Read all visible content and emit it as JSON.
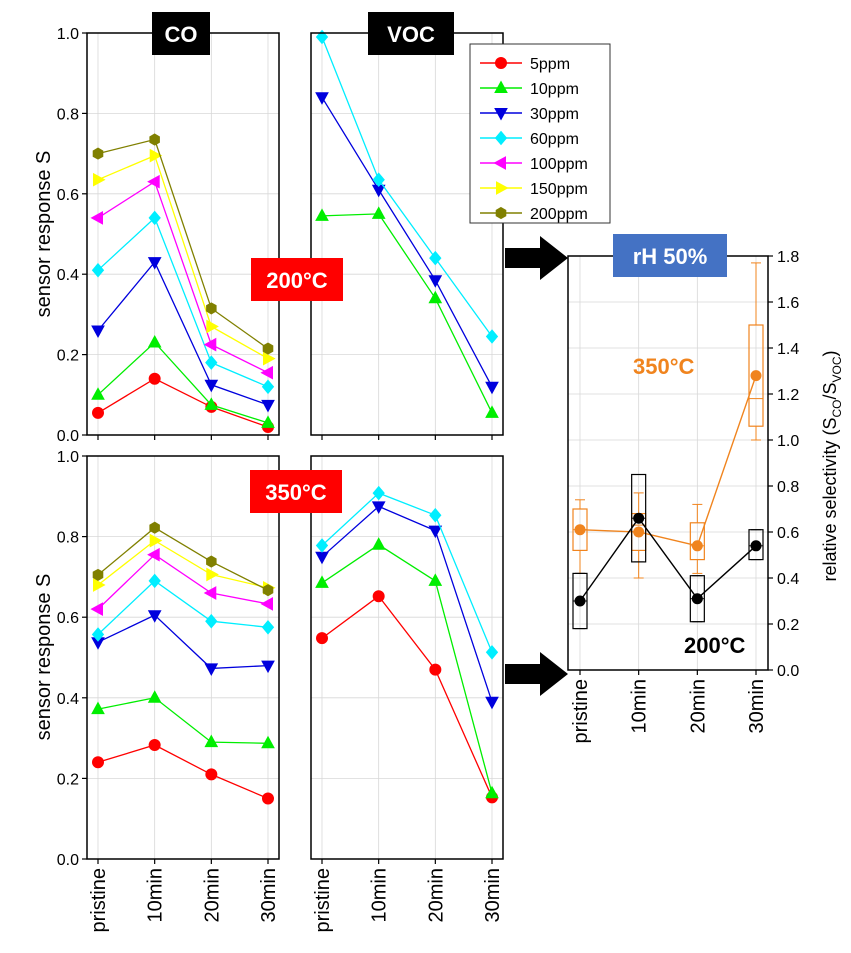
{
  "legend": [
    {
      "key": "s5",
      "label": "5ppm",
      "color": "#ff0000",
      "marker": "circle"
    },
    {
      "key": "s10",
      "label": "10ppm",
      "color": "#00ee00",
      "marker": "triangle-up"
    },
    {
      "key": "s30",
      "label": "30ppm",
      "color": "#0000dd",
      "marker": "triangle-down"
    },
    {
      "key": "s60",
      "label": "60ppm",
      "color": "#00eeff",
      "marker": "diamond"
    },
    {
      "key": "s100",
      "label": "100ppm",
      "color": "#ff00ff",
      "marker": "triangle-left"
    },
    {
      "key": "s150",
      "label": "150ppm",
      "color": "#ffff00",
      "marker": "triangle-right"
    },
    {
      "key": "s200",
      "label": "200ppm",
      "color": "#808000",
      "marker": "hexagon"
    }
  ],
  "labels": {
    "co": "CO",
    "voc": "VOC",
    "temp200": "200°C",
    "temp350": "350°C",
    "rh": "rH 50%",
    "ylabel_left": "sensor response S",
    "ylabel_right": "relative selectivity (S",
    "ylabel_right_sub1": "CO",
    "ylabel_right_mid": "/S",
    "ylabel_right_sub2": "VOC",
    "ylabel_right_end": ")",
    "annot_350": "350°C",
    "annot_200": "200°C"
  },
  "colors": {
    "orange": "#f0841e",
    "black": "#000000",
    "rh_box": "#4472c4",
    "temp_box": "#ff0000"
  },
  "chart_data": [
    {
      "id": "co_200",
      "type": "line",
      "title": "CO",
      "annotation": "200°C",
      "categories": [
        "pristine",
        "10min",
        "20min",
        "30min"
      ],
      "ylim": [
        0,
        1.0
      ],
      "yticks": [
        "0.0",
        "0.2",
        "0.4",
        "0.6",
        "0.8",
        "1.0"
      ],
      "ylabel": "sensor response S",
      "series": [
        {
          "name": "5ppm",
          "values": [
            0.055,
            0.14,
            0.07,
            0.02
          ]
        },
        {
          "name": "10ppm",
          "values": [
            0.1,
            0.23,
            0.075,
            0.03
          ]
        },
        {
          "name": "30ppm",
          "values": [
            0.26,
            0.43,
            0.125,
            0.075
          ]
        },
        {
          "name": "60ppm",
          "values": [
            0.41,
            0.54,
            0.18,
            0.12
          ]
        },
        {
          "name": "100ppm",
          "values": [
            0.54,
            0.63,
            0.225,
            0.155
          ]
        },
        {
          "name": "150ppm",
          "values": [
            0.635,
            0.695,
            0.27,
            0.19
          ]
        },
        {
          "name": "200ppm",
          "values": [
            0.7,
            0.735,
            0.315,
            0.215
          ]
        }
      ]
    },
    {
      "id": "voc_200",
      "type": "line",
      "title": "VOC",
      "annotation": "200°C",
      "categories": [
        "pristine",
        "10min",
        "20min",
        "30min"
      ],
      "ylim": [
        0,
        1.0
      ],
      "series": [
        {
          "name": "10ppm",
          "values": [
            0.545,
            0.55,
            0.34,
            0.055
          ]
        },
        {
          "name": "30ppm",
          "values": [
            0.84,
            0.61,
            0.385,
            0.12
          ]
        },
        {
          "name": "60ppm",
          "values": [
            0.99,
            0.635,
            0.44,
            0.245
          ]
        }
      ]
    },
    {
      "id": "co_350",
      "type": "line",
      "title": "CO",
      "annotation": "350°C",
      "categories": [
        "pristine",
        "10min",
        "20min",
        "30min"
      ],
      "ylim": [
        0,
        1.0
      ],
      "yticks": [
        "0.0",
        "0.2",
        "0.4",
        "0.6",
        "0.8",
        "1.0"
      ],
      "ylabel": "sensor response S",
      "series": [
        {
          "name": "5ppm",
          "values": [
            0.24,
            0.283,
            0.21,
            0.15
          ]
        },
        {
          "name": "10ppm",
          "values": [
            0.372,
            0.4,
            0.29,
            0.287
          ]
        },
        {
          "name": "30ppm",
          "values": [
            0.538,
            0.605,
            0.473,
            0.48
          ]
        },
        {
          "name": "60ppm",
          "values": [
            0.557,
            0.69,
            0.59,
            0.575
          ]
        },
        {
          "name": "100ppm",
          "values": [
            0.62,
            0.755,
            0.66,
            0.633
          ]
        },
        {
          "name": "150ppm",
          "values": [
            0.68,
            0.79,
            0.706,
            0.673
          ]
        },
        {
          "name": "200ppm",
          "values": [
            0.705,
            0.822,
            0.738,
            0.667
          ]
        }
      ]
    },
    {
      "id": "voc_350",
      "type": "line",
      "title": "VOC",
      "annotation": "350°C",
      "categories": [
        "pristine",
        "10min",
        "20min",
        "30min"
      ],
      "ylim": [
        0,
        1.0
      ],
      "series": [
        {
          "name": "5ppm",
          "values": [
            0.548,
            0.652,
            0.47,
            0.153
          ]
        },
        {
          "name": "10ppm",
          "values": [
            0.685,
            0.78,
            0.69,
            0.163
          ]
        },
        {
          "name": "30ppm",
          "values": [
            0.75,
            0.875,
            0.815,
            0.39
          ]
        },
        {
          "name": "60ppm",
          "values": [
            0.778,
            0.908,
            0.853,
            0.513
          ]
        }
      ]
    },
    {
      "id": "selectivity",
      "type": "box",
      "title": "rH 50%",
      "categories": [
        "pristine",
        "10min",
        "20min",
        "30min"
      ],
      "ylim": [
        0,
        1.8
      ],
      "yticks": [
        "0.0",
        "0.2",
        "0.4",
        "0.6",
        "0.8",
        "1.0",
        "1.2",
        "1.4",
        "1.6",
        "1.8"
      ],
      "ylabel": "relative selectivity (SCO/SVOC)",
      "series": [
        {
          "name": "350°C",
          "mean": [
            0.61,
            0.6,
            0.54,
            1.28
          ],
          "q1": [
            0.52,
            0.52,
            0.48,
            1.06
          ],
          "q3": [
            0.7,
            0.68,
            0.64,
            1.5
          ],
          "median": [
            0.61,
            0.63,
            0.54,
            1.18
          ],
          "min": [
            0.42,
            0.4,
            0.42,
            1.0
          ],
          "max": [
            0.74,
            0.77,
            0.72,
            1.77
          ]
        },
        {
          "name": "200°C",
          "mean": [
            0.3,
            0.66,
            0.31,
            0.54
          ],
          "q1": [
            0.18,
            0.47,
            0.21,
            0.48
          ],
          "q3": [
            0.42,
            0.85,
            0.41,
            0.61
          ],
          "median": [
            0.3,
            0.66,
            0.31,
            0.54
          ],
          "min": [
            0.18,
            0.47,
            0.21,
            0.48
          ],
          "max": [
            0.42,
            0.85,
            0.41,
            0.61
          ]
        }
      ]
    }
  ]
}
